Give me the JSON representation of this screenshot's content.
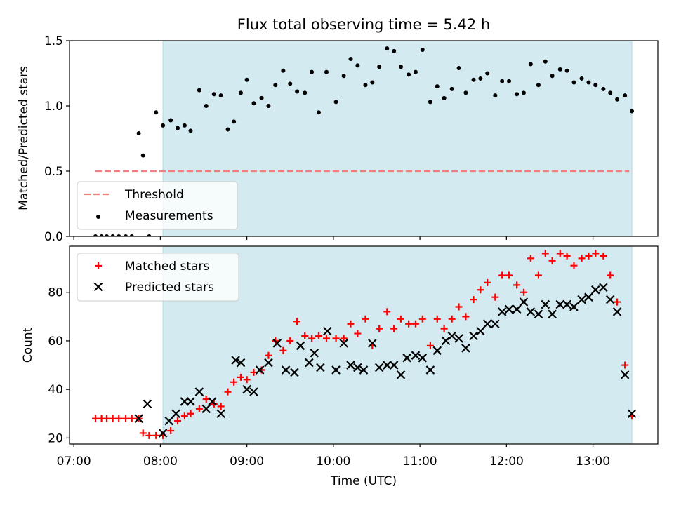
{
  "figure": {
    "title": "Flux total observing time = 5.42 h",
    "xlabel": "Time (UTC)",
    "x_ticks": [
      "07:00",
      "08:00",
      "09:00",
      "10:00",
      "11:00",
      "12:00",
      "13:00"
    ],
    "x_tick_hours": [
      7,
      8,
      9,
      10,
      11,
      12,
      13
    ],
    "x_range_hours": [
      6.95,
      13.75
    ],
    "shaded_span_hours": [
      8.03,
      13.45
    ],
    "shade_color": "#d3eaf0",
    "shade_edge_color": "#b3d8e2"
  },
  "chart_data": [
    {
      "type": "scatter",
      "ylabel": "Matched/Predicted stars",
      "ylim": [
        0,
        1.5
      ],
      "y_ticks": [
        "0.0",
        "0.5",
        "1.0",
        "1.5"
      ],
      "y_tick_values": [
        0,
        0.5,
        1.0,
        1.5
      ],
      "legend_placement": "lower-left",
      "threshold": {
        "name": "Threshold",
        "value": 0.5,
        "x_range_hours": [
          7.25,
          13.42
        ],
        "color": "#f08080"
      },
      "series": [
        {
          "name": "Measurements",
          "color": "#000000",
          "x": [
            7.25,
            7.32,
            7.38,
            7.45,
            7.52,
            7.6,
            7.67,
            7.75,
            7.8,
            7.87,
            7.95,
            8.03,
            8.12,
            8.2,
            8.28,
            8.35,
            8.45,
            8.53,
            8.62,
            8.7,
            8.78,
            8.85,
            8.93,
            9.0,
            9.08,
            9.17,
            9.25,
            9.33,
            9.42,
            9.5,
            9.58,
            9.67,
            9.75,
            9.83,
            9.92,
            10.03,
            10.12,
            10.2,
            10.28,
            10.37,
            10.45,
            10.53,
            10.62,
            10.7,
            10.78,
            10.87,
            10.95,
            11.03,
            11.12,
            11.2,
            11.28,
            11.37,
            11.45,
            11.53,
            11.62,
            11.7,
            11.78,
            11.87,
            11.95,
            12.03,
            12.12,
            12.2,
            12.28,
            12.37,
            12.45,
            12.53,
            12.62,
            12.7,
            12.78,
            12.87,
            12.95,
            13.03,
            13.12,
            13.2,
            13.28,
            13.37,
            13.45
          ],
          "y": [
            0,
            0,
            0,
            0,
            0,
            0,
            0,
            0.79,
            0.62,
            0,
            0.95,
            0.85,
            0.89,
            0.83,
            0.85,
            0.81,
            1.12,
            1.0,
            1.09,
            1.08,
            0.82,
            0.88,
            1.1,
            1.2,
            1.02,
            1.06,
            1.0,
            1.16,
            1.27,
            1.17,
            1.11,
            1.1,
            1.26,
            0.95,
            1.26,
            1.03,
            1.23,
            1.36,
            1.31,
            1.16,
            1.18,
            1.3,
            1.44,
            1.42,
            1.3,
            1.24,
            1.26,
            1.43,
            1.03,
            1.15,
            1.06,
            1.13,
            1.29,
            1.1,
            1.2,
            1.21,
            1.25,
            1.08,
            1.19,
            1.19,
            1.09,
            1.1,
            1.32,
            1.16,
            1.34,
            1.23,
            1.28,
            1.27,
            1.18,
            1.21,
            1.18,
            1.16,
            1.13,
            1.1,
            1.05,
            1.08,
            0.96
          ]
        }
      ]
    },
    {
      "type": "scatter",
      "ylabel": "Count",
      "ylim": [
        17.5,
        99
      ],
      "y_ticks": [
        "20",
        "40",
        "60",
        "80"
      ],
      "y_tick_values": [
        20,
        40,
        60,
        80
      ],
      "legend_placement": "upper-left",
      "series": [
        {
          "name": "Matched stars",
          "color": "#ff0000",
          "marker": "plus",
          "x": [
            7.25,
            7.32,
            7.38,
            7.45,
            7.52,
            7.6,
            7.67,
            7.75,
            7.8,
            7.87,
            7.95,
            8.03,
            8.12,
            8.2,
            8.28,
            8.35,
            8.45,
            8.53,
            8.62,
            8.7,
            8.78,
            8.85,
            8.93,
            9.0,
            9.08,
            9.17,
            9.25,
            9.33,
            9.42,
            9.5,
            9.58,
            9.67,
            9.75,
            9.83,
            9.92,
            10.03,
            10.12,
            10.2,
            10.28,
            10.37,
            10.45,
            10.53,
            10.62,
            10.7,
            10.78,
            10.87,
            10.95,
            11.03,
            11.12,
            11.2,
            11.28,
            11.37,
            11.45,
            11.53,
            11.62,
            11.7,
            11.78,
            11.87,
            11.95,
            12.03,
            12.12,
            12.2,
            12.28,
            12.37,
            12.45,
            12.53,
            12.62,
            12.7,
            12.78,
            12.87,
            12.95,
            13.03,
            13.12,
            13.2,
            13.28,
            13.37,
            13.45
          ],
          "y": [
            28,
            28,
            28,
            28,
            28,
            28,
            28,
            28,
            22,
            21,
            21,
            21,
            23,
            27,
            29,
            30,
            32,
            36,
            34,
            33,
            39,
            43,
            45,
            44,
            47,
            48,
            54,
            60,
            56,
            60,
            68,
            62,
            61,
            62,
            61,
            61,
            61,
            67,
            63,
            69,
            58,
            65,
            72,
            65,
            69,
            67,
            67,
            69,
            58,
            69,
            65,
            69,
            74,
            70,
            77,
            81,
            84,
            78,
            87,
            87,
            83,
            80,
            94,
            87,
            96,
            93,
            96,
            95,
            91,
            94,
            95,
            96,
            95,
            87,
            76,
            50,
            29
          ]
        },
        {
          "name": "Predicted stars",
          "color": "#000000",
          "marker": "x",
          "x": [
            7.75,
            7.85,
            8.03,
            8.1,
            8.18,
            8.28,
            8.35,
            8.45,
            8.53,
            8.6,
            8.7,
            8.87,
            8.93,
            9.0,
            9.08,
            9.15,
            9.25,
            9.35,
            9.45,
            9.55,
            9.62,
            9.72,
            9.78,
            9.85,
            9.93,
            10.03,
            10.12,
            10.2,
            10.28,
            10.35,
            10.45,
            10.53,
            10.62,
            10.7,
            10.78,
            10.85,
            10.95,
            11.03,
            11.12,
            11.2,
            11.3,
            11.37,
            11.45,
            11.53,
            11.62,
            11.7,
            11.78,
            11.87,
            11.95,
            12.03,
            12.12,
            12.2,
            12.28,
            12.37,
            12.45,
            12.53,
            12.62,
            12.7,
            12.78,
            12.87,
            12.95,
            13.03,
            13.12,
            13.2,
            13.28,
            13.37,
            13.45
          ],
          "y": [
            28,
            34,
            22,
            27,
            30,
            35,
            35,
            39,
            32,
            35,
            30,
            52,
            51,
            40,
            39,
            48,
            51,
            59,
            48,
            47,
            58,
            51,
            55,
            49,
            64,
            48,
            59,
            50,
            49,
            48,
            59,
            49,
            50,
            50,
            46,
            53,
            54,
            53,
            48,
            56,
            60,
            62,
            61,
            57,
            62,
            64,
            67,
            67,
            72,
            73,
            73,
            76,
            72,
            71,
            75,
            71,
            75,
            75,
            74,
            77,
            78,
            81,
            82,
            77,
            72,
            46,
            30
          ]
        }
      ]
    }
  ]
}
